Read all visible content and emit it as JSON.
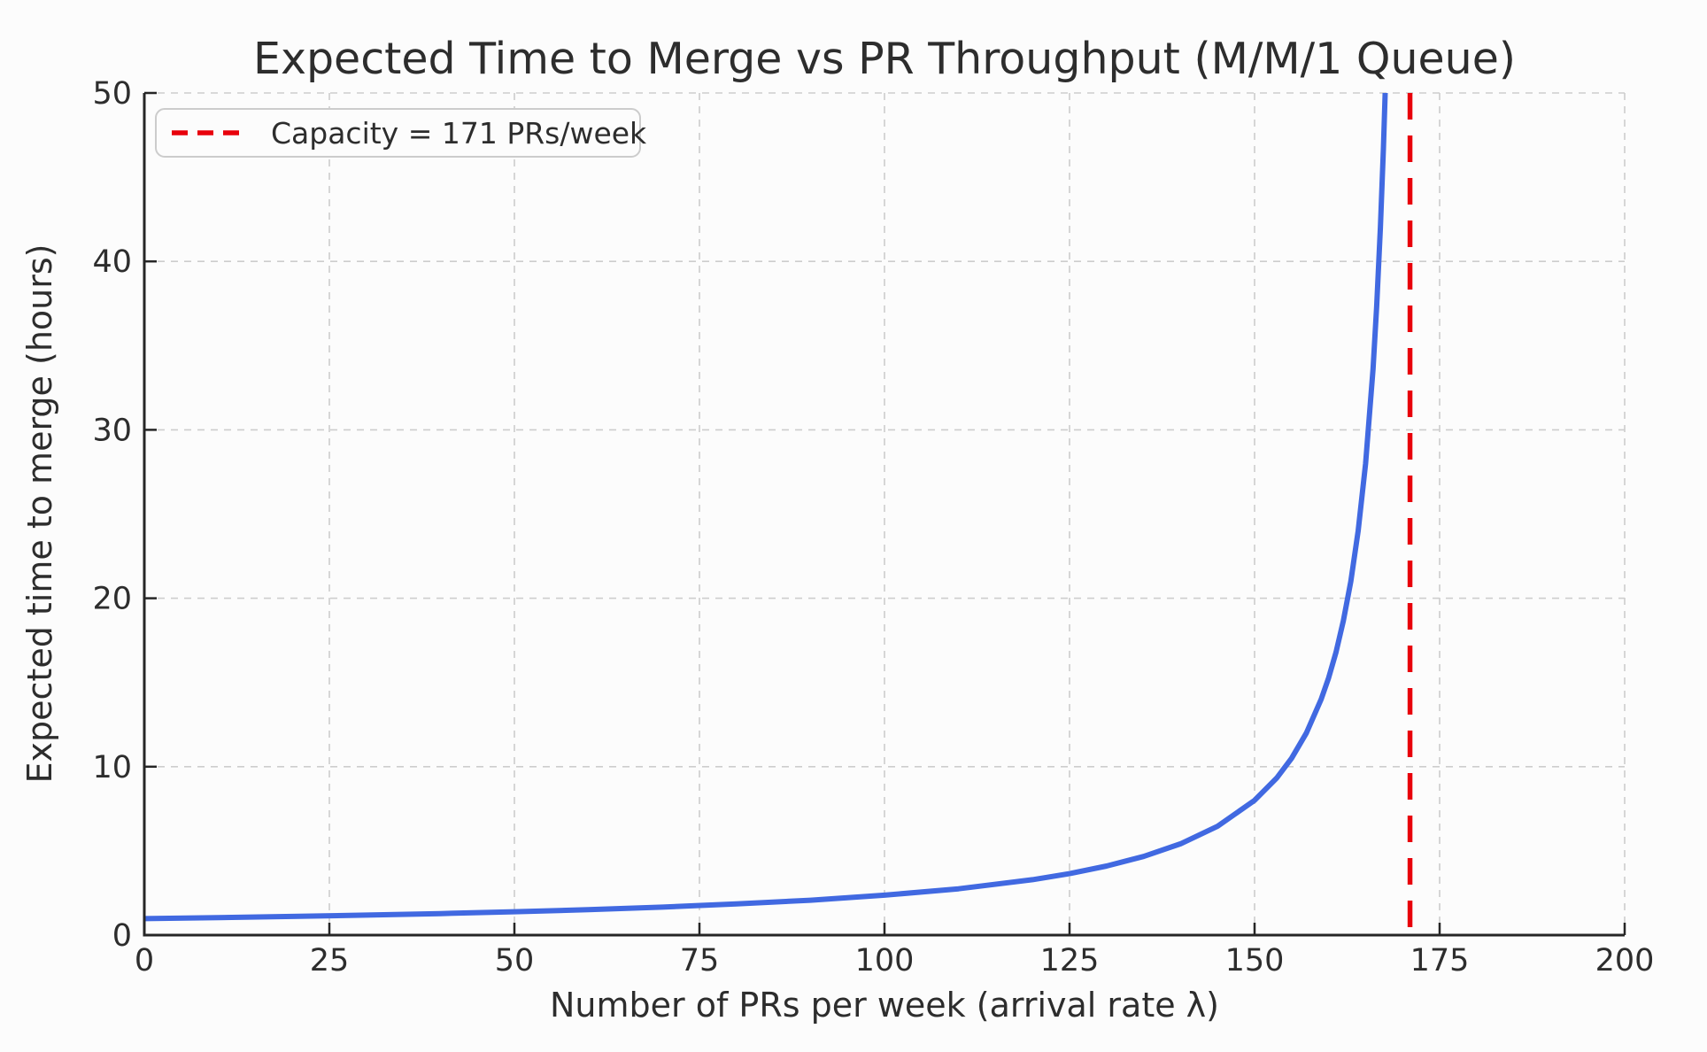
{
  "chart_data": {
    "type": "line",
    "title": "Expected Time to Merge vs PR Throughput (M/M/1 Queue)",
    "xlabel": "Number of PRs per week (arrival rate λ)",
    "ylabel": "Expected time to merge (hours)",
    "xlim": [
      0,
      200
    ],
    "ylim": [
      0,
      50
    ],
    "xticks": [
      0,
      25,
      50,
      75,
      100,
      125,
      150,
      175,
      200
    ],
    "yticks": [
      0,
      10,
      20,
      30,
      40,
      50
    ],
    "grid": true,
    "grid_style": "dashed",
    "legend": {
      "position": "upper-left",
      "entries": [
        {
          "label": "Capacity = 171 PRs/week",
          "color": "#e8000b",
          "style": "dashed"
        }
      ]
    },
    "series": [
      {
        "name": "expected-merge-time",
        "color": "#4169e1",
        "style": "solid",
        "x": [
          0,
          10,
          20,
          30,
          40,
          50,
          60,
          70,
          80,
          90,
          100,
          110,
          120,
          125,
          130,
          135,
          140,
          145,
          150,
          153,
          155,
          157,
          159,
          160,
          161,
          162,
          163,
          164,
          165,
          166,
          166.5,
          167,
          167.4,
          167.64
        ],
        "y": [
          0.98,
          1.04,
          1.11,
          1.19,
          1.28,
          1.39,
          1.51,
          1.66,
          1.85,
          2.07,
          2.37,
          2.75,
          3.29,
          3.65,
          4.1,
          4.67,
          5.42,
          6.46,
          8.0,
          9.33,
          10.5,
          12.0,
          14.0,
          15.27,
          16.8,
          18.67,
          21.0,
          24.0,
          28.0,
          33.6,
          37.33,
          42.0,
          46.67,
          50.0
        ]
      }
    ],
    "vline": {
      "x": 171,
      "color": "#e8000b",
      "style": "dashed",
      "label": "Capacity = 171 PRs/week"
    }
  },
  "colors": {
    "curve": "#4169e1",
    "capacity_line": "#e8000b",
    "grid": "#cdcdcd",
    "spine": "#262626",
    "text": "#2d2d2d",
    "background": "#fcfcfc",
    "legend_fill": "#fcfcfc",
    "legend_border": "#cccccc"
  }
}
